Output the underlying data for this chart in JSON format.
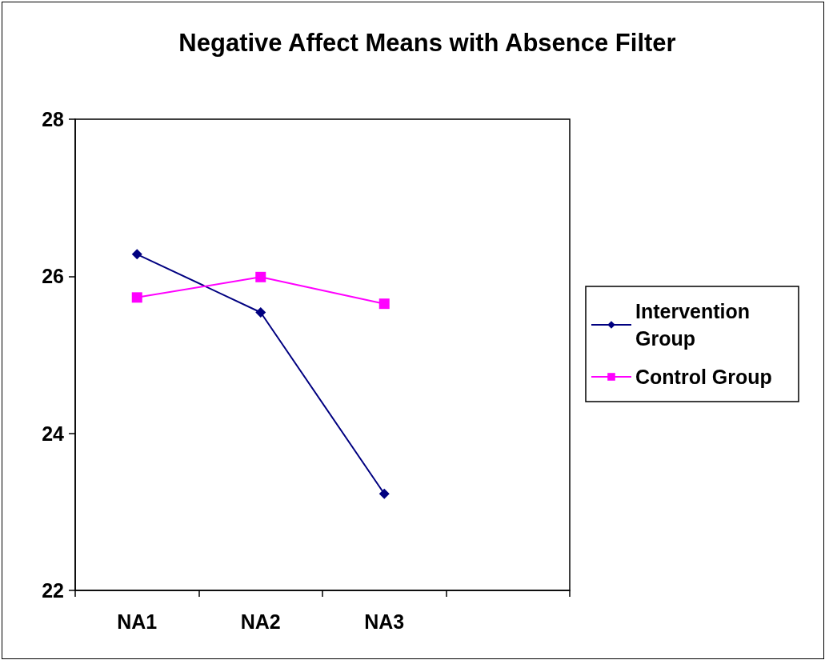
{
  "chart_data": {
    "type": "line",
    "title": "Negative Affect Means with Absence Filter",
    "categories": [
      "NA1",
      "NA2",
      "NA3",
      null
    ],
    "series": [
      {
        "name": "Intervention Group",
        "color": "#000080",
        "marker": "diamond",
        "values": [
          26.28,
          25.54,
          23.23,
          null
        ]
      },
      {
        "name": "Control Group",
        "color": "#ff00ff",
        "marker": "square",
        "values": [
          25.73,
          25.99,
          25.65,
          null
        ]
      }
    ],
    "ylim": [
      22,
      28
    ],
    "yticks": [
      22,
      24,
      26,
      28
    ],
    "grid": false,
    "legend": "right",
    "line_style": "solid"
  }
}
